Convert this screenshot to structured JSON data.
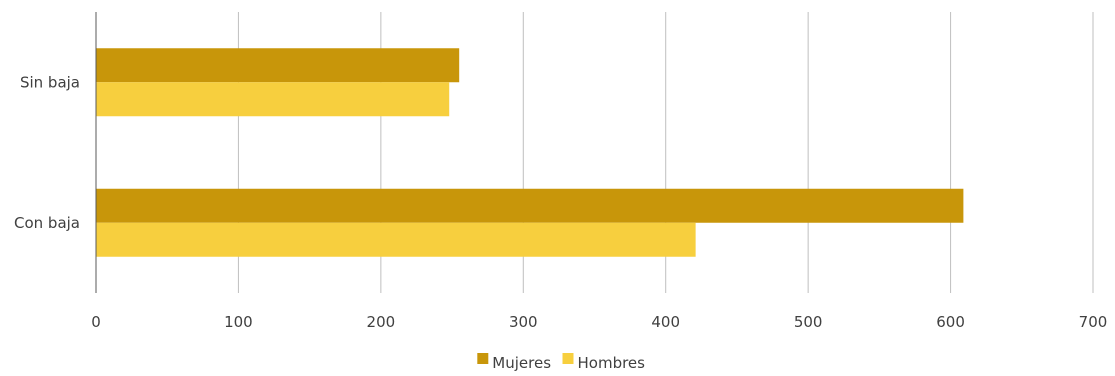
{
  "chart_data": {
    "type": "bar",
    "orientation": "horizontal",
    "categories": [
      "Sin baja",
      "Con baja"
    ],
    "series": [
      {
        "name": "Mujeres",
        "values": [
          255,
          609
        ],
        "color": "#C8960A"
      },
      {
        "name": "Hombres",
        "values": [
          248,
          421
        ],
        "color": "#F7CF3E"
      }
    ],
    "xlim": [
      0,
      700
    ],
    "xticks": [
      0,
      100,
      200,
      300,
      400,
      500,
      600,
      700
    ],
    "grid": "vertical",
    "legend": "bottom-center",
    "title": "",
    "xlabel": "",
    "ylabel": ""
  }
}
